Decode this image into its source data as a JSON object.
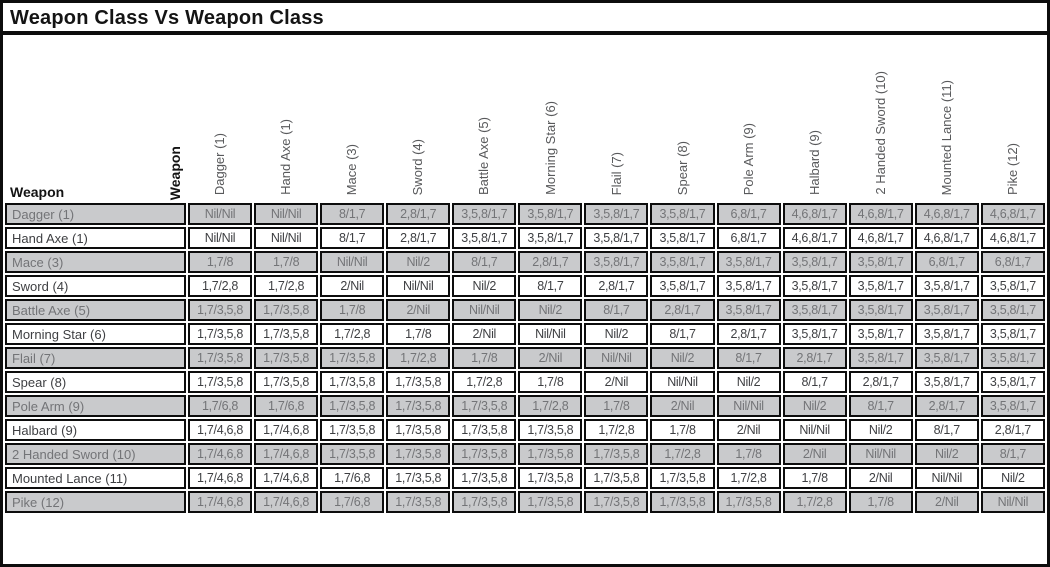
{
  "title": "Weapon Class Vs Weapon Class",
  "axes": {
    "rows_label": "Weapon",
    "columns_label": "Weapon"
  },
  "table": {
    "columns": [
      "Dagger (1)",
      "Hand Axe (1)",
      "Mace (3)",
      "Sword (4)",
      "Battle Axe (5)",
      "Morning Star (6)",
      "Flail (7)",
      "Spear (8)",
      "Pole Arm (9)",
      "Halbard (9)",
      "2 Handed Sword (10)",
      "Mounted Lance (11)",
      "Pike (12)"
    ],
    "rows": [
      {
        "label": "Dagger (1)",
        "values": [
          "Nil/Nil",
          "Nil/Nil",
          "8/1,7",
          "2,8/1,7",
          "3,5,8/1,7",
          "3,5,8/1,7",
          "3,5,8/1,7",
          "3,5,8/1,7",
          "6,8/1,7",
          "4,6,8/1,7",
          "4,6,8/1,7",
          "4,6,8/1,7",
          "4,6,8/1,7"
        ]
      },
      {
        "label": "Hand Axe (1)",
        "values": [
          "Nil/Nil",
          "Nil/Nil",
          "8/1,7",
          "2,8/1,7",
          "3,5,8/1,7",
          "3,5,8/1,7",
          "3,5,8/1,7",
          "3,5,8/1,7",
          "6,8/1,7",
          "4,6,8/1,7",
          "4,6,8/1,7",
          "4,6,8/1,7",
          "4,6,8/1,7"
        ]
      },
      {
        "label": "Mace (3)",
        "values": [
          "1,7/8",
          "1,7/8",
          "Nil/Nil",
          "Nil/2",
          "8/1,7",
          "2,8/1,7",
          "3,5,8/1,7",
          "3,5,8/1,7",
          "3,5,8/1,7",
          "3,5,8/1,7",
          "3,5,8/1,7",
          "6,8/1,7",
          "6,8/1,7"
        ]
      },
      {
        "label": "Sword (4)",
        "values": [
          "1,7/2,8",
          "1,7/2,8",
          "2/Nil",
          "Nil/Nil",
          "Nil/2",
          "8/1,7",
          "2,8/1,7",
          "3,5,8/1,7",
          "3,5,8/1,7",
          "3,5,8/1,7",
          "3,5,8/1,7",
          "3,5,8/1,7",
          "3,5,8/1,7"
        ]
      },
      {
        "label": "Battle Axe (5)",
        "values": [
          "1,7/3,5,8",
          "1,7/3,5,8",
          "1,7/8",
          "2/Nil",
          "Nil/Nil",
          "Nil/2",
          "8/1,7",
          "2,8/1,7",
          "3,5,8/1,7",
          "3,5,8/1,7",
          "3,5,8/1,7",
          "3,5,8/1,7",
          "3,5,8/1,7"
        ]
      },
      {
        "label": "Morning Star (6)",
        "values": [
          "1,7/3,5,8",
          "1,7/3,5,8",
          "1,7/2,8",
          "1,7/8",
          "2/Nil",
          "Nil/Nil",
          "Nil/2",
          "8/1,7",
          "2,8/1,7",
          "3,5,8/1,7",
          "3,5,8/1,7",
          "3,5,8/1,7",
          "3,5,8/1,7"
        ]
      },
      {
        "label": "Flail (7)",
        "values": [
          "1,7/3,5,8",
          "1,7/3,5,8",
          "1,7/3,5,8",
          "1,7/2,8",
          "1,7/8",
          "2/Nil",
          "Nil/Nil",
          "Nil/2",
          "8/1,7",
          "2,8/1,7",
          "3,5,8/1,7",
          "3,5,8/1,7",
          "3,5,8/1,7"
        ]
      },
      {
        "label": "Spear (8)",
        "values": [
          "1,7/3,5,8",
          "1,7/3,5,8",
          "1,7/3,5,8",
          "1,7/3,5,8",
          "1,7/2,8",
          "1,7/8",
          "2/Nil",
          "Nil/Nil",
          "Nil/2",
          "8/1,7",
          "2,8/1,7",
          "3,5,8/1,7",
          "3,5,8/1,7"
        ]
      },
      {
        "label": "Pole Arm (9)",
        "values": [
          "1,7/6,8",
          "1,7/6,8",
          "1,7/3,5,8",
          "1,7/3,5,8",
          "1,7/3,5,8",
          "1,7/2,8",
          "1,7/8",
          "2/Nil",
          "Nil/Nil",
          "Nil/2",
          "8/1,7",
          "2,8/1,7",
          "3,5,8/1,7"
        ]
      },
      {
        "label": "Halbard (9)",
        "values": [
          "1,7/4,6,8",
          "1,7/4,6,8",
          "1,7/3,5,8",
          "1,7/3,5,8",
          "1,7/3,5,8",
          "1,7/3,5,8",
          "1,7/2,8",
          "1,7/8",
          "2/Nil",
          "Nil/Nil",
          "Nil/2",
          "8/1,7",
          "2,8/1,7"
        ]
      },
      {
        "label": "2 Handed Sword (10)",
        "values": [
          "1,7/4,6,8",
          "1,7/4,6,8",
          "1,7/3,5,8",
          "1,7/3,5,8",
          "1,7/3,5,8",
          "1,7/3,5,8",
          "1,7/3,5,8",
          "1,7/2,8",
          "1,7/8",
          "2/Nil",
          "Nil/Nil",
          "Nil/2",
          "8/1,7"
        ]
      },
      {
        "label": "Mounted Lance (11)",
        "values": [
          "1,7/4,6,8",
          "1,7/4,6,8",
          "1,7/6,8",
          "1,7/3,5,8",
          "1,7/3,5,8",
          "1,7/3,5,8",
          "1,7/3,5,8",
          "1,7/3,5,8",
          "1,7/2,8",
          "1,7/8",
          "2/Nil",
          "Nil/Nil",
          "Nil/2"
        ]
      },
      {
        "label": "Pike (12)",
        "values": [
          "1,7/4,6,8",
          "1,7/4,6,8",
          "1,7/6,8",
          "1,7/3,5,8",
          "1,7/3,5,8",
          "1,7/3,5,8",
          "1,7/3,5,8",
          "1,7/3,5,8",
          "1,7/3,5,8",
          "1,7/2,8",
          "1,7/8",
          "2/Nil",
          "Nil/Nil"
        ]
      }
    ]
  },
  "colors": {
    "border": "#0d0d0d",
    "row_stripe": "#c9cacc",
    "stripe_text": "#737477",
    "plain_text": "#3e3f42",
    "header_text": "#58595b"
  }
}
